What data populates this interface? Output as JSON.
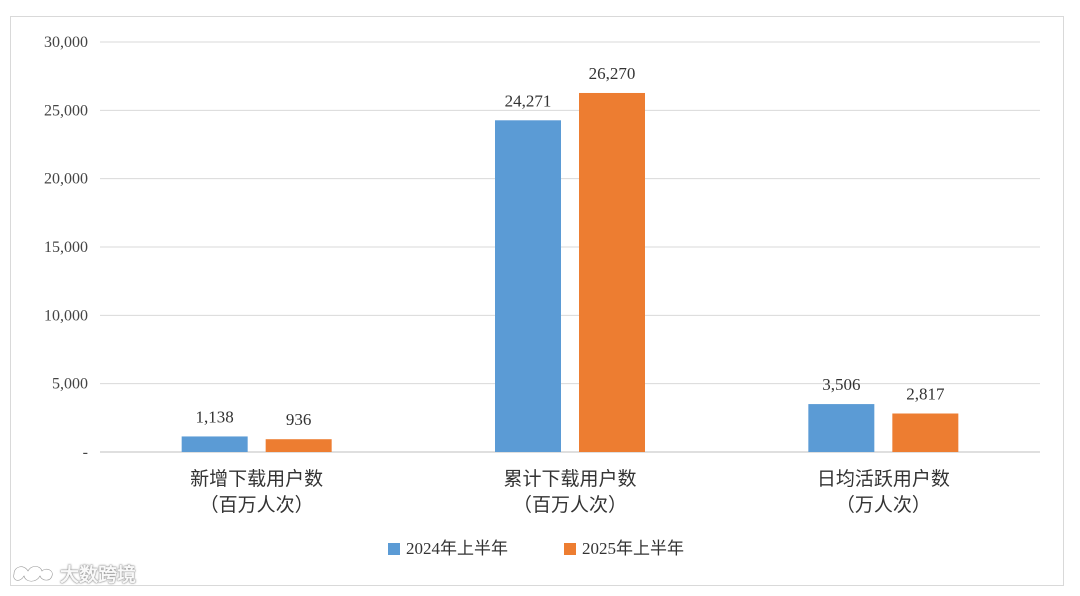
{
  "chart_data": {
    "type": "bar",
    "categories": [
      [
        "新增下载用户数",
        "（百万人次）"
      ],
      [
        "累计下载用户数",
        "（百万人次）"
      ],
      [
        "日均活跃用户数",
        "（万人次）"
      ]
    ],
    "series": [
      {
        "name": "2024年上半年",
        "color": "#5b9bd5",
        "values": [
          1138,
          24271,
          3506
        ],
        "labels": [
          "1,138",
          "24,271",
          "3,506"
        ]
      },
      {
        "name": "2025年上半年",
        "color": "#ed7d31",
        "values": [
          936,
          26270,
          2817
        ],
        "labels": [
          "936",
          "26,270",
          "2,817"
        ]
      }
    ],
    "ylim": [
      0,
      30000
    ],
    "yticks": [
      0,
      5000,
      10000,
      15000,
      20000,
      25000,
      30000
    ],
    "ytick_labels": [
      "-",
      "5,000",
      "10,000",
      "15,000",
      "20,000",
      "25,000",
      "30,000"
    ],
    "grid": true,
    "legend": "bottom"
  },
  "watermark": {
    "text": "大数跨境",
    "logo": "brand-logo-icon"
  }
}
